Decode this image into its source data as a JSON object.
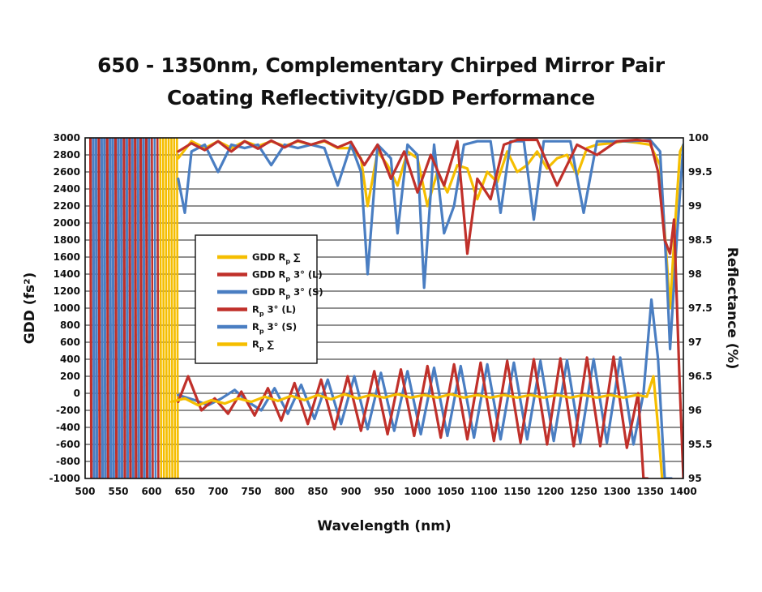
{
  "chart_data": {
    "type": "line",
    "title": "650 - 1350nm, Complementary Chirped Mirror Pair",
    "subtitle": "Coating Reflectivity/GDD Performance",
    "xlabel": "Wavelength (nm)",
    "ylabel_left": "GDD (fs²)",
    "ylabel_right": "Reflectance (%)",
    "xlim": [
      500,
      1400
    ],
    "ylim_left": [
      -1000,
      3000
    ],
    "ylim_right": [
      95,
      100
    ],
    "x_ticks": [
      "500",
      "550",
      "600",
      "650",
      "700",
      "750",
      "800",
      "850",
      "900",
      "950",
      "1000",
      "1050",
      "1100",
      "1150",
      "1200",
      "1250",
      "1300",
      "1350",
      "1400"
    ],
    "y_left_ticks": [
      "3000",
      "2800",
      "2600",
      "2400",
      "2200",
      "2000",
      "1800",
      "1600",
      "1400",
      "1200",
      "1000",
      "800",
      "600",
      "400",
      "200",
      "0",
      "-200",
      "-400",
      "-600",
      "-800",
      "-1000"
    ],
    "y_right_ticks": [
      "100",
      "99.5",
      "99",
      "98.5",
      "98",
      "97.5",
      "97",
      "96.5",
      "96",
      "95.5",
      "95"
    ],
    "grid": true,
    "legend_position": "center-left",
    "colors": {
      "yellow": "#F5BE00",
      "red": "#C0302A",
      "blue": "#4A7EC2"
    },
    "series": [
      {
        "name": "GDD Rp ∑",
        "legend_label": "GDD R",
        "legend_suffix": " ∑",
        "axis": "left",
        "color": "#F5BE00",
        "x": [
          630,
          650,
          670,
          690,
          710,
          730,
          750,
          770,
          790,
          810,
          830,
          850,
          870,
          890,
          910,
          930,
          950,
          970,
          990,
          1010,
          1030,
          1050,
          1070,
          1090,
          1110,
          1130,
          1150,
          1170,
          1190,
          1210,
          1230,
          1250,
          1270,
          1290,
          1310,
          1330,
          1345,
          1355,
          1362,
          1368
        ],
        "y": [
          -100,
          -60,
          -140,
          -80,
          -120,
          -60,
          -100,
          -40,
          -90,
          -30,
          -80,
          -20,
          -70,
          -10,
          -60,
          -20,
          -50,
          -10,
          -50,
          -20,
          -50,
          -10,
          -50,
          -20,
          -50,
          -20,
          -50,
          -20,
          -50,
          -20,
          -50,
          -20,
          -50,
          -20,
          -50,
          -20,
          -40,
          200,
          -400,
          -1000
        ]
      },
      {
        "name": "GDD Rp 3° (L)",
        "legend_label": "GDD R",
        "legend_suffix": " 3° (L)",
        "axis": "left",
        "color": "#C0302A",
        "x": [
          640,
          655,
          675,
          695,
          715,
          735,
          755,
          775,
          795,
          815,
          835,
          855,
          875,
          895,
          915,
          935,
          955,
          975,
          995,
          1015,
          1035,
          1055,
          1075,
          1095,
          1115,
          1135,
          1155,
          1175,
          1195,
          1215,
          1235,
          1255,
          1275,
          1295,
          1315,
          1332,
          1340,
          1346
        ],
        "y": [
          -100,
          200,
          -200,
          -60,
          -240,
          20,
          -260,
          60,
          -320,
          120,
          -360,
          160,
          -420,
          200,
          -440,
          260,
          -480,
          280,
          -500,
          320,
          -520,
          340,
          -540,
          360,
          -560,
          380,
          -580,
          400,
          -600,
          410,
          -620,
          420,
          -620,
          430,
          -640,
          0,
          -1000,
          -1000
        ]
      },
      {
        "name": "GDD Rp 3° (S)",
        "legend_label": "GDD R",
        "legend_suffix": " 3° (S)",
        "axis": "left",
        "color": "#4A7EC2",
        "x": [
          640,
          665,
          685,
          705,
          725,
          745,
          765,
          785,
          805,
          825,
          845,
          865,
          885,
          905,
          925,
          945,
          965,
          985,
          1005,
          1025,
          1045,
          1065,
          1085,
          1105,
          1125,
          1145,
          1165,
          1185,
          1205,
          1225,
          1245,
          1265,
          1285,
          1305,
          1325,
          1340,
          1352,
          1362,
          1372,
          1382
        ],
        "y": [
          -20,
          -80,
          -140,
          -60,
          40,
          -100,
          -200,
          60,
          -240,
          100,
          -300,
          160,
          -360,
          200,
          -420,
          240,
          -440,
          260,
          -480,
          300,
          -500,
          320,
          -520,
          340,
          -540,
          360,
          -540,
          380,
          -560,
          390,
          -580,
          400,
          -580,
          420,
          -600,
          0,
          1100,
          400,
          -1000,
          -1000
        ]
      },
      {
        "name": "Rp 3° (L)",
        "legend_label": "R",
        "legend_suffix": " 3° (L)",
        "axis": "right",
        "color": "#C0302A",
        "x": [
          640,
          660,
          680,
          700,
          720,
          740,
          760,
          780,
          800,
          820,
          840,
          860,
          880,
          900,
          920,
          940,
          960,
          980,
          1000,
          1020,
          1040,
          1060,
          1075,
          1090,
          1110,
          1130,
          1150,
          1180,
          1210,
          1240,
          1270,
          1300,
          1330,
          1350,
          1362,
          1372,
          1380,
          1386,
          1394,
          1400
        ],
        "y": [
          99.8,
          99.92,
          99.82,
          99.95,
          99.8,
          99.95,
          99.84,
          99.96,
          99.86,
          99.96,
          99.9,
          99.96,
          99.86,
          99.94,
          99.6,
          99.9,
          99.4,
          99.8,
          99.2,
          99.75,
          99.3,
          99.95,
          98.3,
          99.4,
          99.1,
          99.9,
          99.97,
          99.97,
          99.3,
          99.9,
          99.75,
          99.95,
          99.97,
          99.95,
          99.5,
          98.5,
          98.3,
          98.8,
          96.5,
          95.0
        ]
      },
      {
        "name": "Rp 3° (S)",
        "legend_label": "R",
        "legend_suffix": " 3° (S)",
        "axis": "right",
        "color": "#4A7EC2",
        "x": [
          640,
          650,
          660,
          680,
          700,
          720,
          740,
          760,
          780,
          800,
          820,
          840,
          860,
          880,
          900,
          915,
          925,
          940,
          960,
          970,
          985,
          1000,
          1010,
          1025,
          1040,
          1055,
          1070,
          1090,
          1110,
          1125,
          1140,
          1160,
          1175,
          1190,
          1210,
          1230,
          1250,
          1270,
          1290,
          1320,
          1350,
          1365,
          1375,
          1380,
          1390,
          1400
        ],
        "y": [
          99.4,
          98.9,
          99.8,
          99.9,
          99.5,
          99.9,
          99.85,
          99.9,
          99.6,
          99.9,
          99.85,
          99.9,
          99.85,
          99.3,
          99.9,
          99.5,
          98.0,
          99.9,
          99.7,
          98.6,
          99.9,
          99.75,
          97.8,
          99.9,
          98.6,
          99.0,
          99.9,
          99.95,
          99.95,
          98.9,
          99.95,
          99.95,
          98.8,
          99.95,
          99.95,
          99.95,
          98.9,
          99.95,
          99.95,
          99.95,
          99.97,
          99.8,
          98.0,
          96.9,
          98.5,
          99.9
        ]
      },
      {
        "name": "Rp ∑",
        "legend_label": "R",
        "legend_suffix": " ∑",
        "axis": "right",
        "color": "#F5BE00",
        "x": [
          640,
          660,
          680,
          700,
          720,
          740,
          760,
          780,
          800,
          820,
          840,
          860,
          880,
          900,
          915,
          925,
          940,
          955,
          970,
          985,
          1000,
          1015,
          1030,
          1045,
          1060,
          1075,
          1090,
          1105,
          1120,
          1135,
          1150,
          1165,
          1180,
          1195,
          1210,
          1225,
          1240,
          1255,
          1270,
          1290,
          1310,
          1330,
          1350,
          1365,
          1375,
          1380,
          1388,
          1395,
          1400
        ],
        "y": [
          99.7,
          99.95,
          99.85,
          99.95,
          99.85,
          99.95,
          99.88,
          99.95,
          99.88,
          99.95,
          99.9,
          99.95,
          99.85,
          99.85,
          99.7,
          99.0,
          99.8,
          99.6,
          99.3,
          99.8,
          99.7,
          99.0,
          99.5,
          99.2,
          99.6,
          99.55,
          99.1,
          99.5,
          99.35,
          99.8,
          99.5,
          99.6,
          99.8,
          99.55,
          99.7,
          99.75,
          99.45,
          99.85,
          99.9,
          99.92,
          99.95,
          99.93,
          99.9,
          99.6,
          98.2,
          97.5,
          98.8,
          99.8,
          99.9
        ]
      }
    ]
  }
}
